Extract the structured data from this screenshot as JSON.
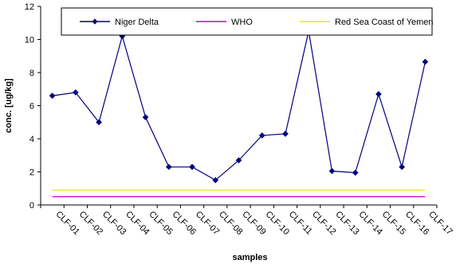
{
  "chart_data": {
    "type": "line",
    "title": "",
    "xlabel": "samples",
    "ylabel": "conc. [ug/kg]",
    "ylim": [
      0,
      12
    ],
    "y_ticks": [
      0,
      2,
      4,
      6,
      8,
      10,
      12
    ],
    "grid": false,
    "legend_position": "top",
    "categories": [
      "CLF-01",
      "CLF-02",
      "CLF-03",
      "CLF-04",
      "CLF-05",
      "CLF-06",
      "CLF-07",
      "CLF-08",
      "CLF-09",
      "CLF-10",
      "CLF-11",
      "CLF-12",
      "CLF-13",
      "CLF-14",
      "CLF-15",
      "CLF-16",
      "CLF-17"
    ],
    "series": [
      {
        "name": "Niger Delta",
        "color": "#000080",
        "marker": "diamond",
        "values": [
          6.6,
          6.8,
          5.0,
          10.2,
          5.3,
          2.3,
          2.3,
          1.5,
          2.7,
          4.2,
          4.3,
          10.5,
          2.05,
          1.95,
          6.7,
          2.3,
          8.65
        ]
      },
      {
        "name": "WHO",
        "color": "#cc00cc",
        "marker": "none",
        "values": [
          0.5,
          0.5,
          0.5,
          0.5,
          0.5,
          0.5,
          0.5,
          0.5,
          0.5,
          0.5,
          0.5,
          0.5,
          0.5,
          0.5,
          0.5,
          0.5,
          0.5
        ]
      },
      {
        "name": "Red Sea Coast of Yemen",
        "color": "#e8e800",
        "marker": "none",
        "values": [
          0.9,
          0.9,
          0.9,
          0.9,
          0.9,
          0.9,
          0.9,
          0.9,
          0.9,
          0.9,
          0.9,
          0.9,
          0.9,
          0.9,
          0.9,
          0.9,
          0.9
        ]
      }
    ]
  }
}
